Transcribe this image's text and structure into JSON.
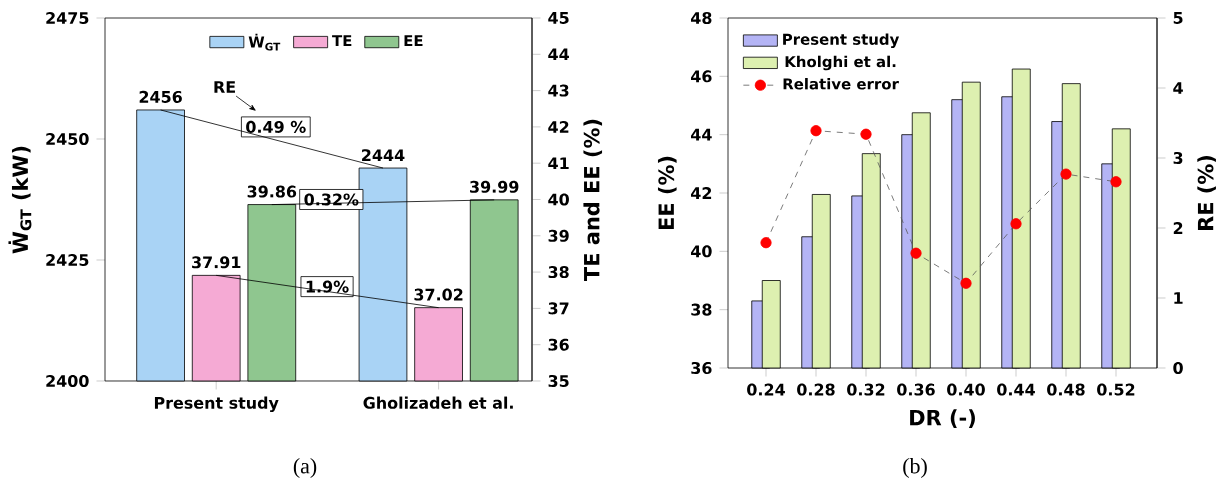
{
  "chart_data": [
    {
      "type": "bar",
      "categories": [
        "Present study",
        "Gholizadeh et al."
      ],
      "ylabel": "Ẇ$_{GT}$ (kW)",
      "y2label": "TE and EE (%)",
      "series": [
        {
          "name": "Ẇ$_{GT}$",
          "color": "#a9d3f5",
          "values": [
            2456,
            2444
          ]
        },
        {
          "name": "TE",
          "color": "#f5aad4",
          "values": [
            37.91,
            37.02
          ],
          "axis": "y2"
        },
        {
          "name": "EE",
          "color": "#8fc68f",
          "values": [
            39.86,
            39.99
          ],
          "axis": "y2"
        }
      ],
      "ylim": [
        2400,
        2475
      ],
      "yticks": [
        2400,
        2425,
        2450,
        2475
      ],
      "y2lim": [
        35,
        45
      ],
      "y2ticks": [
        35,
        36,
        37,
        38,
        39,
        40,
        41,
        42,
        43,
        44,
        45
      ],
      "data_labels": true,
      "legend": "top",
      "annotations": [
        "RE",
        "0.49 %",
        "0.32%",
        "1.9%",
        "(a)"
      ]
    },
    {
      "type": "bar",
      "categories": [
        "0.24",
        "0.28",
        "0.32",
        "0.36",
        "0.40",
        "0.44",
        "0.48",
        "0.52"
      ],
      "xlabel": "DR  (-)",
      "ylabel": "EE (%)",
      "y2label": "RE (%)",
      "series": [
        {
          "name": "Present study",
          "color": "#b4b4f5",
          "values": [
            38.3,
            40.5,
            41.9,
            44.0,
            45.2,
            45.3,
            44.45,
            43.0
          ]
        },
        {
          "name": "Kholghi et al.",
          "color": "#ddf0b0",
          "values": [
            39.0,
            41.95,
            43.35,
            44.75,
            45.8,
            46.25,
            45.75,
            44.2
          ]
        },
        {
          "name": "Relative error",
          "type": "line",
          "color": "#ff0000",
          "axis": "y2",
          "marker": "circle",
          "line_style": "dashed",
          "values": [
            1.79,
            3.39,
            3.34,
            1.64,
            1.21,
            2.06,
            2.77,
            2.66
          ]
        }
      ],
      "ylim": [
        36,
        48
      ],
      "yticks": [
        36,
        38,
        40,
        42,
        44,
        46,
        48
      ],
      "y2lim": [
        0,
        5
      ],
      "y2ticks": [
        0,
        1,
        2,
        3,
        4,
        5
      ],
      "legend": "top left",
      "annotations": [
        "(b)"
      ]
    }
  ]
}
